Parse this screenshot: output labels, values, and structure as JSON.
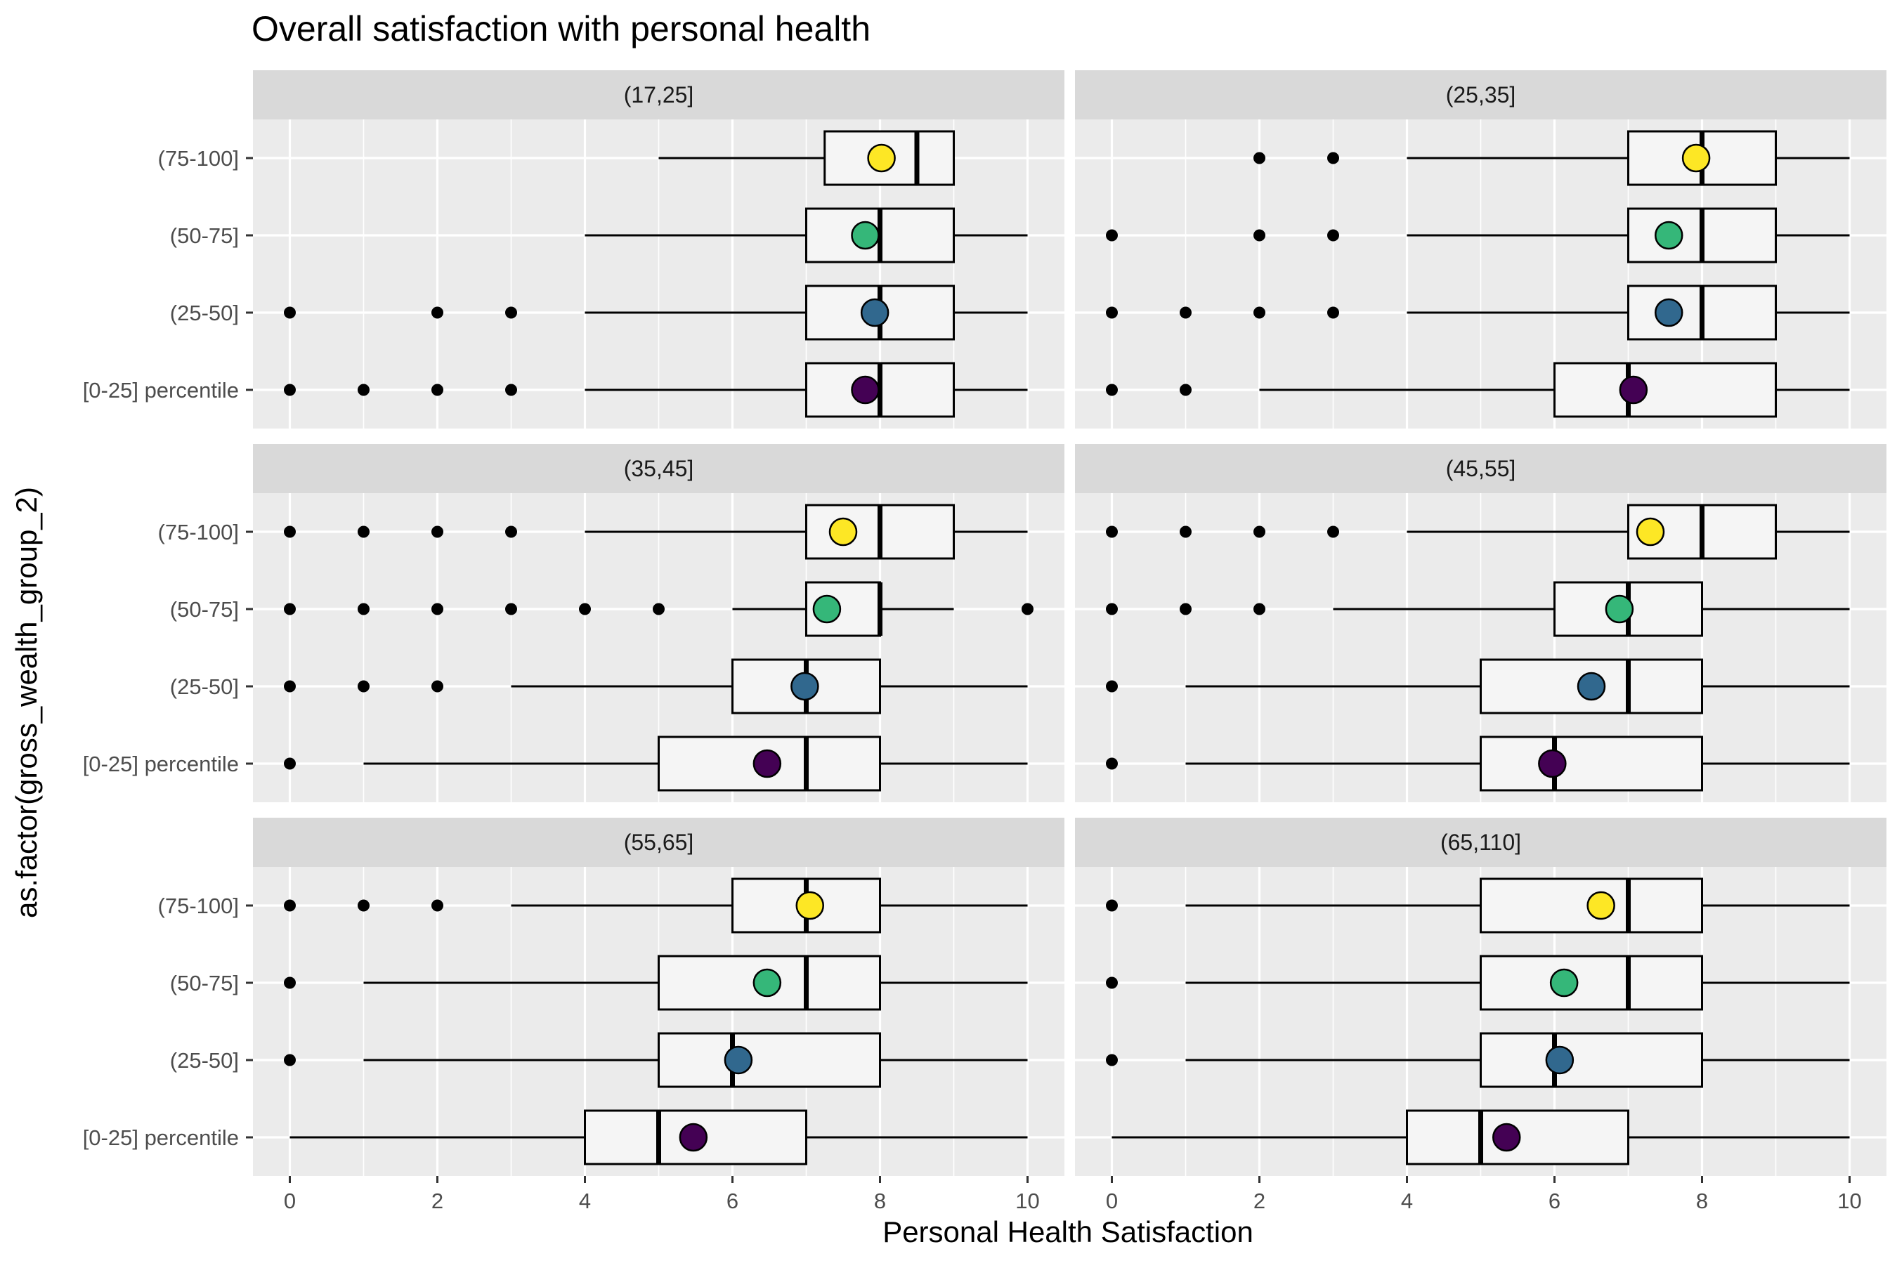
{
  "chart_data": {
    "type": "boxplot",
    "title": "Overall satisfaction with personal health",
    "xlabel": "Personal Health Satisfaction",
    "ylabel": "as.factor(gross_wealth_group_2)",
    "xlim": [
      0,
      10
    ],
    "x_ticks": [
      0,
      2,
      4,
      6,
      8,
      10
    ],
    "categories": [
      "[0-25] percentile",
      "(25-50]",
      "(50-75]",
      "(75-100]"
    ],
    "mean_colors": {
      "[0-25] percentile": "#440154",
      "(25-50]": "#31688E",
      "(50-75]": "#35B779",
      "(75-100]": "#FDE725"
    },
    "panel_layout": "3 rows x 2 columns, facets by age group",
    "grid": true,
    "panels": [
      {
        "label": "(17,25]",
        "groups": [
          {
            "category": "[0-25] percentile",
            "whisker_low": 4,
            "q1": 7,
            "median": 8,
            "q3": 9,
            "whisker_high": 10,
            "mean": 7.8,
            "outliers": [
              0,
              1,
              2,
              3
            ]
          },
          {
            "category": "(25-50]",
            "whisker_low": 4,
            "q1": 7,
            "median": 8,
            "q3": 9,
            "whisker_high": 10,
            "mean": 7.93,
            "outliers": [
              0,
              2,
              3
            ]
          },
          {
            "category": "(50-75]",
            "whisker_low": 4,
            "q1": 7,
            "median": 8,
            "q3": 9,
            "whisker_high": 10,
            "mean": 7.8,
            "outliers": []
          },
          {
            "category": "(75-100]",
            "whisker_low": 5,
            "q1": 7.25,
            "median": 8.5,
            "q3": 9,
            "whisker_high": 9,
            "mean": 8.02,
            "outliers": []
          }
        ]
      },
      {
        "label": "(25,35]",
        "groups": [
          {
            "category": "[0-25] percentile",
            "whisker_low": 2,
            "q1": 6,
            "median": 7,
            "q3": 9,
            "whisker_high": 10,
            "mean": 7.07,
            "outliers": [
              0,
              1
            ]
          },
          {
            "category": "(25-50]",
            "whisker_low": 4,
            "q1": 7,
            "median": 8,
            "q3": 9,
            "whisker_high": 10,
            "mean": 7.55,
            "outliers": [
              0,
              1,
              2,
              3
            ]
          },
          {
            "category": "(50-75]",
            "whisker_low": 4,
            "q1": 7,
            "median": 8,
            "q3": 9,
            "whisker_high": 10,
            "mean": 7.55,
            "outliers": [
              0,
              2,
              3
            ]
          },
          {
            "category": "(75-100]",
            "whisker_low": 4,
            "q1": 7,
            "median": 8,
            "q3": 9,
            "whisker_high": 10,
            "mean": 7.92,
            "outliers": [
              2,
              3
            ]
          }
        ]
      },
      {
        "label": "(35,45]",
        "groups": [
          {
            "category": "[0-25] percentile",
            "whisker_low": 1,
            "q1": 5,
            "median": 7,
            "q3": 8,
            "whisker_high": 10,
            "mean": 6.47,
            "outliers": [
              0
            ]
          },
          {
            "category": "(25-50]",
            "whisker_low": 3,
            "q1": 6,
            "median": 7,
            "q3": 8,
            "whisker_high": 10,
            "mean": 6.98,
            "outliers": [
              0,
              1,
              2
            ]
          },
          {
            "category": "(50-75]",
            "whisker_low": 6,
            "q1": 7,
            "median": 8,
            "q3": 8,
            "whisker_high": 9,
            "mean": 7.28,
            "outliers": [
              0,
              1,
              2,
              3,
              4,
              5,
              10
            ]
          },
          {
            "category": "(75-100]",
            "whisker_low": 4,
            "q1": 7,
            "median": 8,
            "q3": 9,
            "whisker_high": 10,
            "mean": 7.5,
            "outliers": [
              0,
              1,
              2,
              3
            ]
          }
        ]
      },
      {
        "label": "(45,55]",
        "groups": [
          {
            "category": "[0-25] percentile",
            "whisker_low": 1,
            "q1": 5,
            "median": 6,
            "q3": 8,
            "whisker_high": 10,
            "mean": 5.97,
            "outliers": [
              0
            ]
          },
          {
            "category": "(25-50]",
            "whisker_low": 1,
            "q1": 5,
            "median": 7,
            "q3": 8,
            "whisker_high": 10,
            "mean": 6.5,
            "outliers": [
              0
            ]
          },
          {
            "category": "(50-75]",
            "whisker_low": 3,
            "q1": 6,
            "median": 7,
            "q3": 8,
            "whisker_high": 10,
            "mean": 6.88,
            "outliers": [
              0,
              1,
              2
            ]
          },
          {
            "category": "(75-100]",
            "whisker_low": 4,
            "q1": 7,
            "median": 8,
            "q3": 9,
            "whisker_high": 10,
            "mean": 7.3,
            "outliers": [
              0,
              1,
              2,
              3
            ]
          }
        ]
      },
      {
        "label": "(55,65]",
        "groups": [
          {
            "category": "[0-25] percentile",
            "whisker_low": 0,
            "q1": 4,
            "median": 5,
            "q3": 7,
            "whisker_high": 10,
            "mean": 5.47,
            "outliers": []
          },
          {
            "category": "(25-50]",
            "whisker_low": 1,
            "q1": 5,
            "median": 6,
            "q3": 8,
            "whisker_high": 10,
            "mean": 6.08,
            "outliers": [
              0
            ]
          },
          {
            "category": "(50-75]",
            "whisker_low": 1,
            "q1": 5,
            "median": 7,
            "q3": 8,
            "whisker_high": 10,
            "mean": 6.47,
            "outliers": [
              0
            ]
          },
          {
            "category": "(75-100]",
            "whisker_low": 3,
            "q1": 6,
            "median": 7,
            "q3": 8,
            "whisker_high": 10,
            "mean": 7.05,
            "outliers": [
              0,
              1,
              2
            ]
          }
        ]
      },
      {
        "label": "(65,110]",
        "groups": [
          {
            "category": "[0-25] percentile",
            "whisker_low": 0,
            "q1": 4,
            "median": 5,
            "q3": 7,
            "whisker_high": 10,
            "mean": 5.35,
            "outliers": []
          },
          {
            "category": "(25-50]",
            "whisker_low": 1,
            "q1": 5,
            "median": 6,
            "q3": 8,
            "whisker_high": 10,
            "mean": 6.07,
            "outliers": [
              0
            ]
          },
          {
            "category": "(50-75]",
            "whisker_low": 1,
            "q1": 5,
            "median": 7,
            "q3": 8,
            "whisker_high": 10,
            "mean": 6.13,
            "outliers": [
              0
            ]
          },
          {
            "category": "(75-100]",
            "whisker_low": 1,
            "q1": 5,
            "median": 7,
            "q3": 8,
            "whisker_high": 10,
            "mean": 6.63,
            "outliers": [
              0
            ]
          }
        ]
      }
    ]
  }
}
